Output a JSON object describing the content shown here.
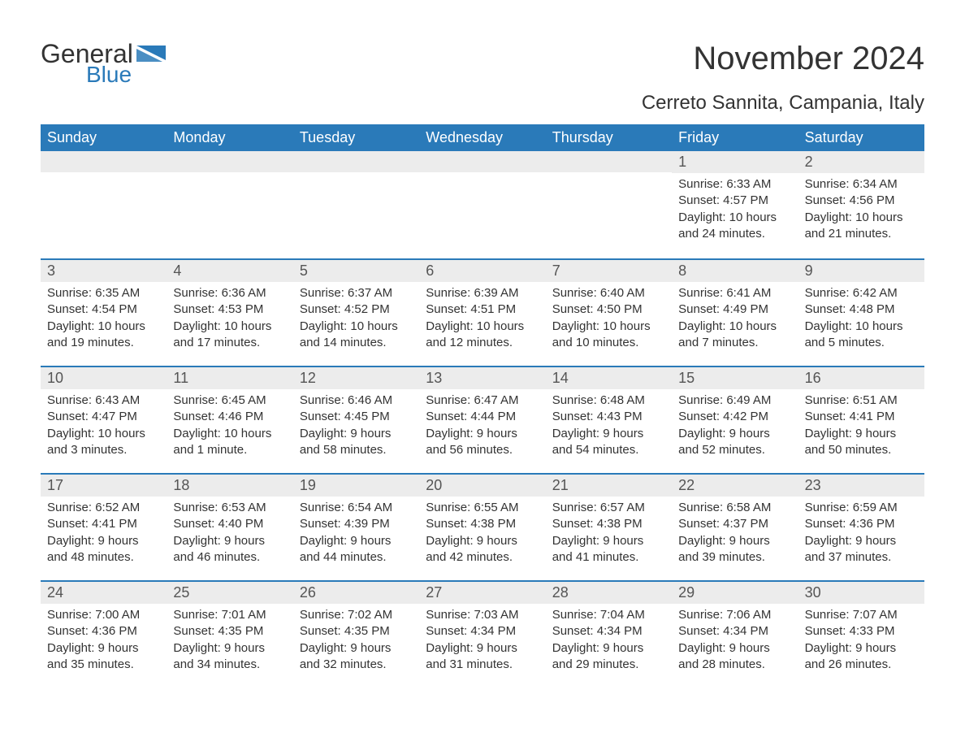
{
  "logo": {
    "word1": "General",
    "word2": "Blue",
    "flag_color": "#2a7ab9",
    "text_color": "#333333"
  },
  "title": "November 2024",
  "location": "Cerreto Sannita, Campania, Italy",
  "colors": {
    "header_bg": "#2a7ab9",
    "header_text": "#ffffff",
    "daynum_bg": "#ececec",
    "divider": "#2a7ab9",
    "body_text": "#333333",
    "background": "#ffffff"
  },
  "fonts": {
    "title_size": 40,
    "location_size": 24,
    "weekday_size": 18,
    "daynum_size": 18,
    "body_size": 15
  },
  "weekdays": [
    "Sunday",
    "Monday",
    "Tuesday",
    "Wednesday",
    "Thursday",
    "Friday",
    "Saturday"
  ],
  "weeks": [
    [
      null,
      null,
      null,
      null,
      null,
      {
        "n": "1",
        "sunrise": "6:33 AM",
        "sunset": "4:57 PM",
        "daylight": "10 hours and 24 minutes."
      },
      {
        "n": "2",
        "sunrise": "6:34 AM",
        "sunset": "4:56 PM",
        "daylight": "10 hours and 21 minutes."
      }
    ],
    [
      {
        "n": "3",
        "sunrise": "6:35 AM",
        "sunset": "4:54 PM",
        "daylight": "10 hours and 19 minutes."
      },
      {
        "n": "4",
        "sunrise": "6:36 AM",
        "sunset": "4:53 PM",
        "daylight": "10 hours and 17 minutes."
      },
      {
        "n": "5",
        "sunrise": "6:37 AM",
        "sunset": "4:52 PM",
        "daylight": "10 hours and 14 minutes."
      },
      {
        "n": "6",
        "sunrise": "6:39 AM",
        "sunset": "4:51 PM",
        "daylight": "10 hours and 12 minutes."
      },
      {
        "n": "7",
        "sunrise": "6:40 AM",
        "sunset": "4:50 PM",
        "daylight": "10 hours and 10 minutes."
      },
      {
        "n": "8",
        "sunrise": "6:41 AM",
        "sunset": "4:49 PM",
        "daylight": "10 hours and 7 minutes."
      },
      {
        "n": "9",
        "sunrise": "6:42 AM",
        "sunset": "4:48 PM",
        "daylight": "10 hours and 5 minutes."
      }
    ],
    [
      {
        "n": "10",
        "sunrise": "6:43 AM",
        "sunset": "4:47 PM",
        "daylight": "10 hours and 3 minutes."
      },
      {
        "n": "11",
        "sunrise": "6:45 AM",
        "sunset": "4:46 PM",
        "daylight": "10 hours and 1 minute."
      },
      {
        "n": "12",
        "sunrise": "6:46 AM",
        "sunset": "4:45 PM",
        "daylight": "9 hours and 58 minutes."
      },
      {
        "n": "13",
        "sunrise": "6:47 AM",
        "sunset": "4:44 PM",
        "daylight": "9 hours and 56 minutes."
      },
      {
        "n": "14",
        "sunrise": "6:48 AM",
        "sunset": "4:43 PM",
        "daylight": "9 hours and 54 minutes."
      },
      {
        "n": "15",
        "sunrise": "6:49 AM",
        "sunset": "4:42 PM",
        "daylight": "9 hours and 52 minutes."
      },
      {
        "n": "16",
        "sunrise": "6:51 AM",
        "sunset": "4:41 PM",
        "daylight": "9 hours and 50 minutes."
      }
    ],
    [
      {
        "n": "17",
        "sunrise": "6:52 AM",
        "sunset": "4:41 PM",
        "daylight": "9 hours and 48 minutes."
      },
      {
        "n": "18",
        "sunrise": "6:53 AM",
        "sunset": "4:40 PM",
        "daylight": "9 hours and 46 minutes."
      },
      {
        "n": "19",
        "sunrise": "6:54 AM",
        "sunset": "4:39 PM",
        "daylight": "9 hours and 44 minutes."
      },
      {
        "n": "20",
        "sunrise": "6:55 AM",
        "sunset": "4:38 PM",
        "daylight": "9 hours and 42 minutes."
      },
      {
        "n": "21",
        "sunrise": "6:57 AM",
        "sunset": "4:38 PM",
        "daylight": "9 hours and 41 minutes."
      },
      {
        "n": "22",
        "sunrise": "6:58 AM",
        "sunset": "4:37 PM",
        "daylight": "9 hours and 39 minutes."
      },
      {
        "n": "23",
        "sunrise": "6:59 AM",
        "sunset": "4:36 PM",
        "daylight": "9 hours and 37 minutes."
      }
    ],
    [
      {
        "n": "24",
        "sunrise": "7:00 AM",
        "sunset": "4:36 PM",
        "daylight": "9 hours and 35 minutes."
      },
      {
        "n": "25",
        "sunrise": "7:01 AM",
        "sunset": "4:35 PM",
        "daylight": "9 hours and 34 minutes."
      },
      {
        "n": "26",
        "sunrise": "7:02 AM",
        "sunset": "4:35 PM",
        "daylight": "9 hours and 32 minutes."
      },
      {
        "n": "27",
        "sunrise": "7:03 AM",
        "sunset": "4:34 PM",
        "daylight": "9 hours and 31 minutes."
      },
      {
        "n": "28",
        "sunrise": "7:04 AM",
        "sunset": "4:34 PM",
        "daylight": "9 hours and 29 minutes."
      },
      {
        "n": "29",
        "sunrise": "7:06 AM",
        "sunset": "4:34 PM",
        "daylight": "9 hours and 28 minutes."
      },
      {
        "n": "30",
        "sunrise": "7:07 AM",
        "sunset": "4:33 PM",
        "daylight": "9 hours and 26 minutes."
      }
    ]
  ],
  "labels": {
    "sunrise": "Sunrise: ",
    "sunset": "Sunset: ",
    "daylight": "Daylight: "
  }
}
